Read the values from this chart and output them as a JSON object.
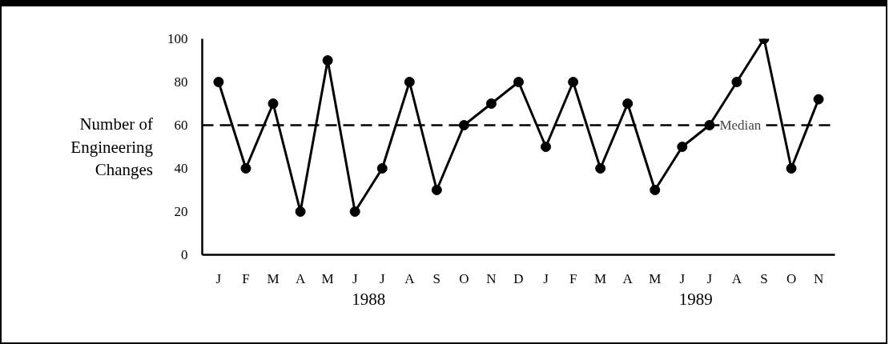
{
  "chart_data": {
    "type": "line",
    "ylabel": "Number of Engineering Changes",
    "categories": [
      "J",
      "F",
      "M",
      "A",
      "M",
      "J",
      "J",
      "A",
      "S",
      "O",
      "N",
      "D",
      "J",
      "F",
      "M",
      "A",
      "M",
      "J",
      "J",
      "A",
      "S",
      "O",
      "N"
    ],
    "series": [
      {
        "color": "#000000",
        "values": [
          80,
          40,
          70,
          20,
          90,
          20,
          40,
          80,
          30,
          60,
          70,
          80,
          50,
          80,
          40,
          70,
          30,
          50,
          60,
          80,
          100,
          40,
          72
        ]
      }
    ],
    "ylim": [
      0,
      100
    ],
    "yticks": [
      0,
      20,
      40,
      60,
      80,
      100
    ],
    "ref_lines": [
      {
        "axis": "y",
        "value": 60,
        "label": "Median",
        "line_style": "dashed",
        "color": "#000000"
      }
    ],
    "annotations": [
      "1988",
      "1989"
    ],
    "grid": false,
    "marker": "circle",
    "line_style": "solid"
  }
}
